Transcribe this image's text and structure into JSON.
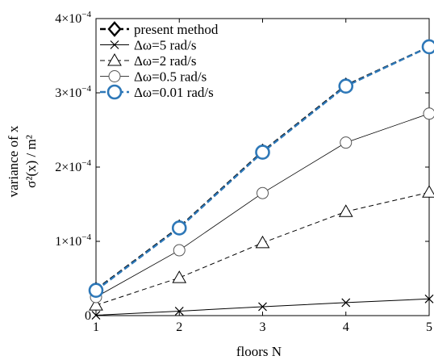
{
  "chart_data": {
    "type": "line",
    "xlabel": "floors N",
    "ylabel_line1": "variance of x",
    "ylabel_line2": "σ²(x) / m²",
    "xlim": [
      1,
      5
    ],
    "ylim": [
      0,
      0.0004
    ],
    "xticks": [
      {
        "value": 1,
        "label": "1"
      },
      {
        "value": 2,
        "label": "2"
      },
      {
        "value": 3,
        "label": "3"
      },
      {
        "value": 4,
        "label": "4"
      },
      {
        "value": 5,
        "label": "5"
      }
    ],
    "yticks": [
      {
        "value": 0,
        "mant": "0",
        "exp": ""
      },
      {
        "value": 0.0001,
        "mant": "1×10",
        "exp": "−4"
      },
      {
        "value": 0.0002,
        "mant": "2×10",
        "exp": "−4"
      },
      {
        "value": 0.0003,
        "mant": "3×10",
        "exp": "−4"
      },
      {
        "value": 0.0004,
        "mant": "4×10",
        "exp": "−4"
      }
    ],
    "grid": false,
    "legend_position": "top-left",
    "x": [
      1,
      2,
      3,
      4,
      5
    ],
    "series": [
      {
        "name": "present method",
        "marker": "diamond",
        "dash": "7,4",
        "color": "#000000",
        "width": 2.4,
        "values": [
          3.5e-05,
          0.000119,
          0.000221,
          0.00031,
          0.000362
        ]
      },
      {
        "name": "Δω=5 rad/s",
        "marker": "x",
        "dash": "",
        "color": "#000000",
        "width": 1,
        "values": [
          5e-07,
          6e-06,
          1.2e-05,
          1.75e-05,
          2.25e-05
        ]
      },
      {
        "name": "Δω=2 rad/s",
        "marker": "triangle",
        "dash": "6,4",
        "color": "#000000",
        "width": 1,
        "values": [
          1.4e-05,
          5.1e-05,
          9.8e-05,
          0.00014,
          0.000166
        ]
      },
      {
        "name": "Δω=0.5 rad/s",
        "marker": "circle",
        "dash": "",
        "color": "#000000",
        "width": 0.8,
        "values": [
          2.5e-05,
          8.8e-05,
          0.000165,
          0.000233,
          0.000272
        ]
      },
      {
        "name": "Δω=0.01 rad/s",
        "marker": "circle-blue",
        "dash": "7,4",
        "color": "#2e78b8",
        "width": 2.4,
        "values": [
          3.4e-05,
          0.000118,
          0.00022,
          0.000309,
          0.000362
        ]
      }
    ]
  }
}
